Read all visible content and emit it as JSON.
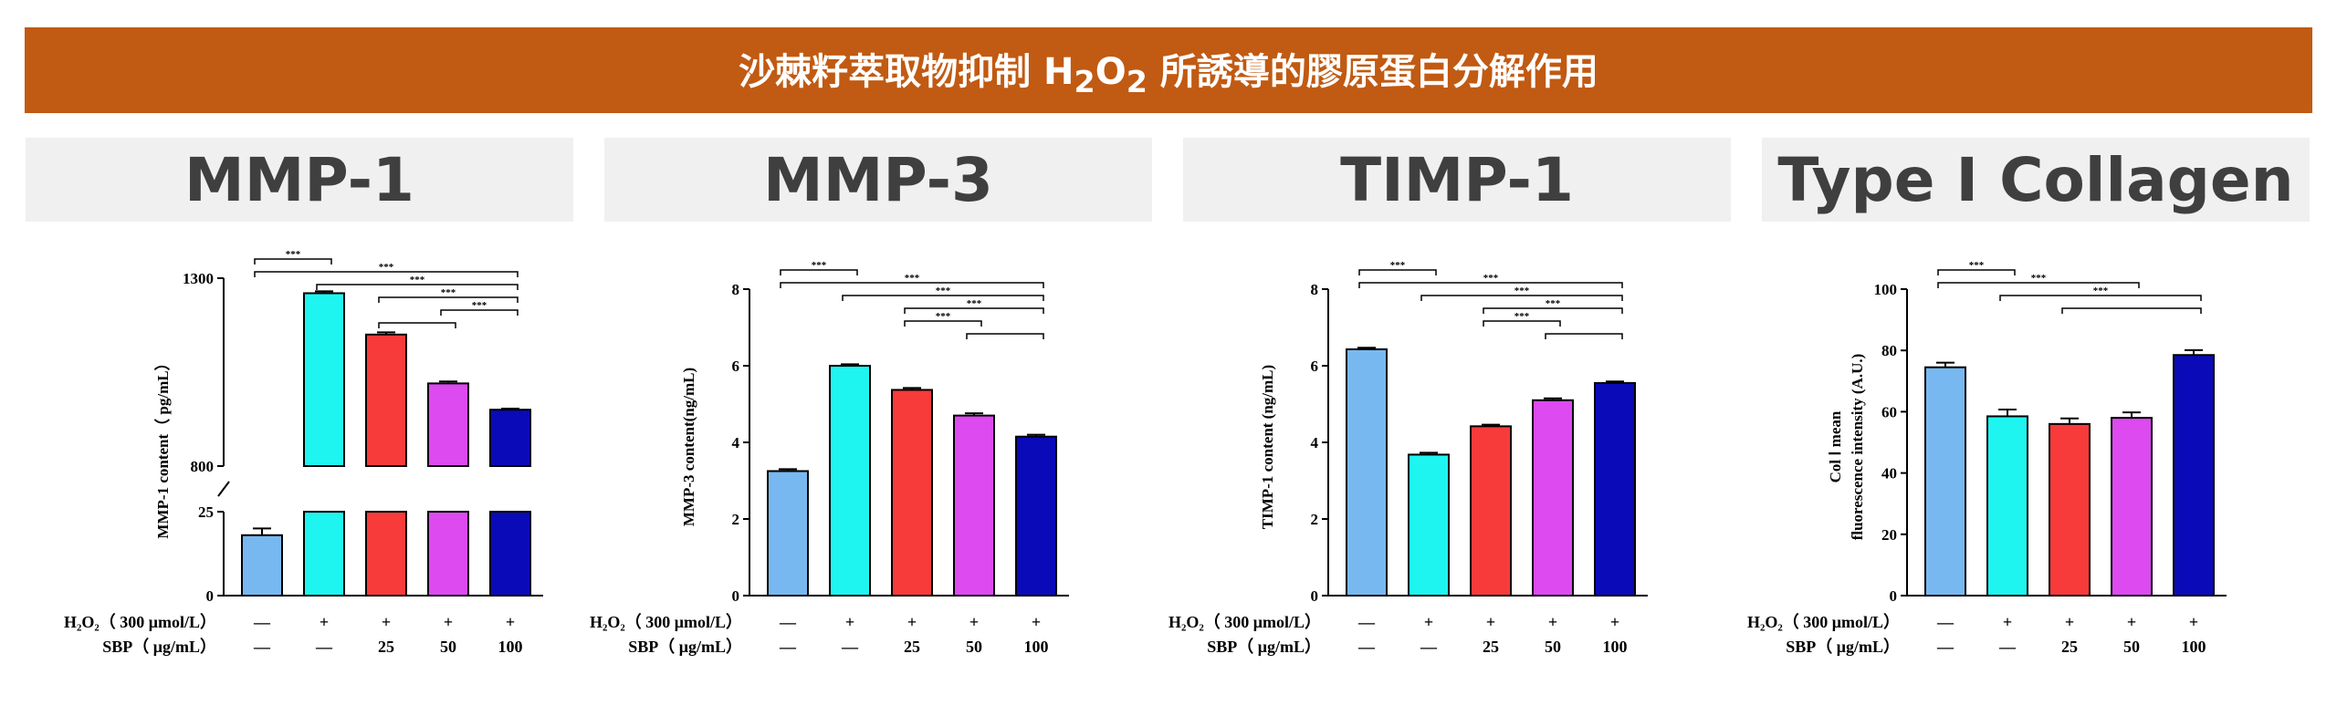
{
  "colors": {
    "banner_bg": "#c15a12",
    "series": [
      "#78b8f0",
      "#1ff5f0",
      "#f73b3b",
      "#dc4af0",
      "#0a0ab8"
    ]
  },
  "banner": {
    "title_prefix": "沙棘籽萃取物抑制 H",
    "title_sub1": "2",
    "title_mid": "O",
    "title_sub2": "2",
    "title_suffix": " 所誘導的膠原蛋白分解作用"
  },
  "chart_data": [
    {
      "type": "bar",
      "header": "MMP-1",
      "ylabel": "MMP-1 content（ pg/mL）",
      "broken_axis": true,
      "ylim_lower": [
        0,
        25
      ],
      "ylim_upper": [
        800,
        1300
      ],
      "y_ticks": [
        "0",
        "25",
        "800",
        "1300"
      ],
      "values": [
        18,
        1260,
        1150,
        1020,
        950
      ],
      "errors": [
        2,
        5,
        6,
        5,
        3
      ],
      "row1_label": "H₂O₂（ 300 μmol/L）",
      "row1": [
        "—",
        "+",
        "+",
        "+",
        "+"
      ],
      "row2_label": "SBP（ μg/mL）",
      "row2": [
        "—",
        "—",
        "25",
        "50",
        "100"
      ],
      "significance": [
        "***",
        "***",
        "***",
        "***",
        "***"
      ]
    },
    {
      "type": "bar",
      "header": "MMP-3",
      "ylabel": "MMP-3 content(ng/mL)",
      "ylim": [
        0,
        8
      ],
      "y_ticks": [
        "0",
        "2",
        "4",
        "6",
        "8"
      ],
      "values": [
        3.25,
        6.0,
        5.37,
        4.7,
        4.15
      ],
      "errors": [
        0.05,
        0.04,
        0.05,
        0.06,
        0.05
      ],
      "row1_label": "H₂O₂（ 300 μmol/L）",
      "row1": [
        "—",
        "+",
        "+",
        "+",
        "+"
      ],
      "row2_label": "SBP（ μg/mL）",
      "row2": [
        "—",
        "—",
        "25",
        "50",
        "100"
      ],
      "significance": [
        "***",
        "***",
        "***",
        "***",
        "***"
      ]
    },
    {
      "type": "bar",
      "header": "TIMP-1",
      "ylabel": "TIMP-1 content (ng/mL)",
      "ylim": [
        0,
        8
      ],
      "y_ticks": [
        "0",
        "2",
        "4",
        "6",
        "8"
      ],
      "values": [
        6.43,
        3.68,
        4.42,
        5.1,
        5.55
      ],
      "errors": [
        0.04,
        0.05,
        0.04,
        0.05,
        0.04
      ],
      "row1_label": "H₂O₂（ 300 μmol/L）",
      "row1": [
        "—",
        "+",
        "+",
        "+",
        "+"
      ],
      "row2_label": "SBP（ μg/mL）",
      "row2": [
        "—",
        "—",
        "25",
        "50",
        "100"
      ],
      "significance": [
        "***",
        "***",
        "***",
        "***",
        "***"
      ]
    },
    {
      "type": "bar",
      "header": "Type I Collagen",
      "ylabel": [
        "Col Ⅰ mean",
        "fluorescence intensity (A.U.)"
      ],
      "ylim": [
        0,
        100
      ],
      "y_ticks": [
        "0",
        "20",
        "40",
        "60",
        "80",
        "100"
      ],
      "values": [
        74.5,
        58.5,
        56,
        58,
        78.5
      ],
      "errors": [
        1.5,
        2.2,
        1.8,
        1.8,
        1.6
      ],
      "row1_label": "H₂O₂（ 300 μmol/L）",
      "row1": [
        "—",
        "+",
        "+",
        "+",
        "+"
      ],
      "row2_label": "SBP（ μg/mL）",
      "row2": [
        "—",
        "—",
        "25",
        "50",
        "100"
      ],
      "significance": [
        "***",
        "***",
        "***"
      ]
    }
  ]
}
